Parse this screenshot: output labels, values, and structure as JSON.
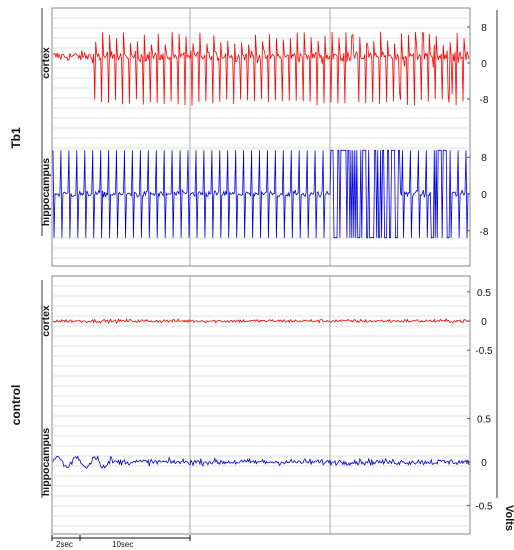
{
  "chart_data": {
    "type": "line",
    "y_axis_title": "Volts",
    "scale_bar": {
      "short_label": "2sec",
      "long_label": "10sec"
    },
    "groups": [
      {
        "label": "Tb1",
        "panels": [
          {
            "label": "cortex",
            "ylim": [
              -10,
              10
            ],
            "tick_values": [
              8,
              0,
              -8
            ],
            "tick_labels": [
              "8",
              "0",
              "-8"
            ],
            "color": "#ff0000",
            "style": "spikes-moderate"
          },
          {
            "label": "hippocampus",
            "ylim": [
              -10,
              10
            ],
            "tick_values": [
              8,
              0,
              -8
            ],
            "tick_labels": [
              "8",
              "0",
              "-8"
            ],
            "color": "#0000dd",
            "style": "spikes-saturated"
          }
        ]
      },
      {
        "label": "control",
        "panels": [
          {
            "label": "cortex",
            "ylim": [
              -0.6,
              0.6
            ],
            "tick_values": [
              0.5,
              0,
              -0.5
            ],
            "tick_labels": [
              "0.5",
              "0",
              "-0.5"
            ],
            "color": "#ff0000",
            "style": "noise-low"
          },
          {
            "label": "hippocampus",
            "ylim": [
              -0.6,
              0.6
            ],
            "tick_values": [
              0.5,
              0,
              -0.5
            ],
            "tick_labels": [
              "0.5",
              "0",
              "-0.5"
            ],
            "color": "#0000dd",
            "style": "noise-medium"
          }
        ]
      }
    ],
    "grid": true
  }
}
